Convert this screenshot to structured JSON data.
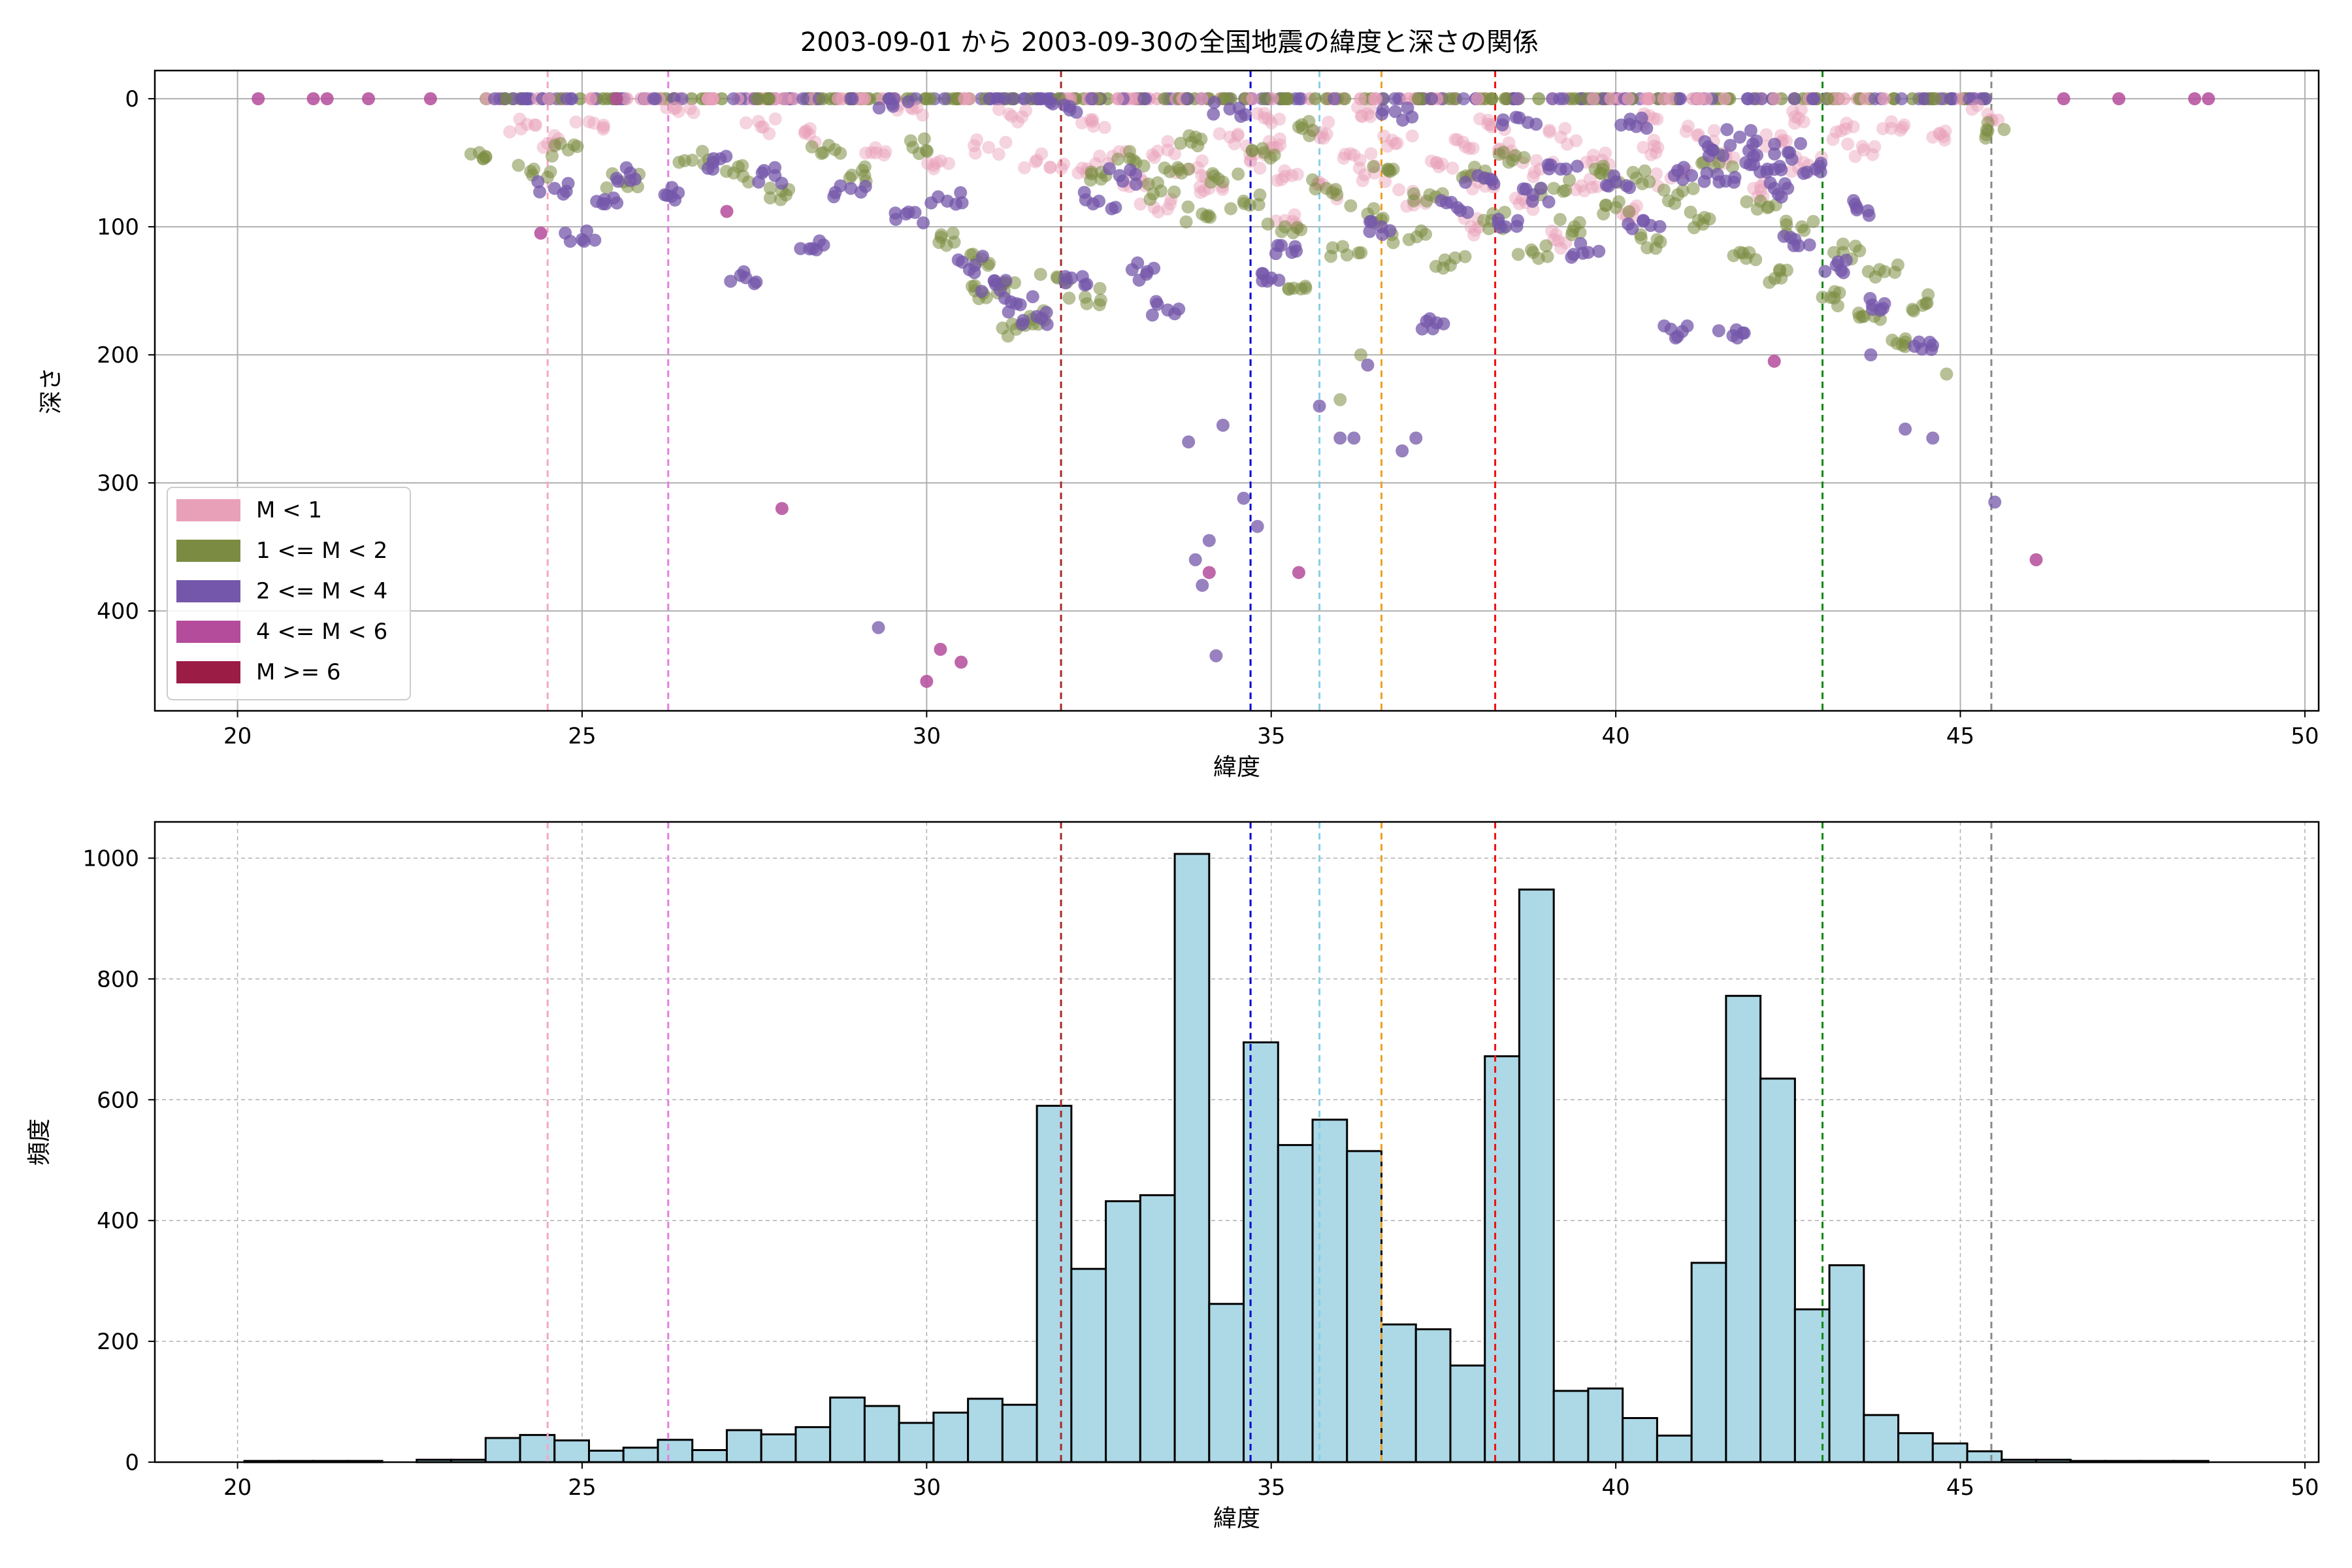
{
  "title": "2003-09-01 から 2003-09-30の全国地震の緯度と深さの関係",
  "chart_data": [
    {
      "type": "scatter",
      "xlabel": "緯度",
      "ylabel": "深さ",
      "xlim": [
        18.8,
        50.2
      ],
      "ylim": [
        478,
        -22
      ],
      "y_inverted": true,
      "x_ticks": [
        20,
        25,
        30,
        35,
        40,
        45,
        50
      ],
      "y_ticks": [
        0,
        100,
        200,
        300,
        400
      ],
      "grid": true,
      "legend_placement": "lower-left",
      "series": [
        {
          "name": "M < 1",
          "color": "#e8a0b8",
          "points": [
            [
              24.2,
              20
            ],
            [
              24.5,
              35
            ],
            [
              25.1,
              18
            ],
            [
              26.4,
              10
            ],
            [
              27.6,
              22
            ],
            [
              28.3,
              28
            ],
            [
              29.2,
              42
            ],
            [
              30.1,
              52
            ],
            [
              30.9,
              38
            ],
            [
              31.6,
              48
            ],
            [
              32.2,
              58
            ],
            [
              32.7,
              45
            ],
            [
              33.1,
              62
            ],
            [
              33.5,
              40
            ],
            [
              33.8,
              55
            ],
            [
              34.1,
              70
            ],
            [
              34.4,
              30
            ],
            [
              34.7,
              48
            ],
            [
              35.0,
              38
            ],
            [
              35.3,
              60
            ],
            [
              35.6,
              25
            ],
            [
              35.9,
              72
            ],
            [
              36.2,
              44
            ],
            [
              36.5,
              58
            ],
            [
              36.8,
              35
            ],
            [
              37.1,
              78
            ],
            [
              37.4,
              50
            ],
            [
              37.7,
              32
            ],
            [
              38.0,
              65
            ],
            [
              38.3,
              40
            ],
            [
              38.6,
              82
            ],
            [
              38.9,
              55
            ],
            [
              39.2,
              30
            ],
            [
              39.5,
              68
            ],
            [
              39.8,
              48
            ],
            [
              40.1,
              90
            ],
            [
              40.4,
              38
            ],
            [
              40.8,
              62
            ],
            [
              41.2,
              28
            ],
            [
              41.6,
              46
            ],
            [
              42.0,
              70
            ],
            [
              42.4,
              34
            ],
            [
              42.8,
              52
            ],
            [
              43.2,
              26
            ],
            [
              43.6,
              40
            ],
            [
              44.0,
              18
            ],
            [
              44.6,
              30
            ],
            [
              45.4,
              12
            ],
            [
              32.4,
              18
            ],
            [
              34.9,
              15
            ],
            [
              36.4,
              12
            ],
            [
              38.2,
              22
            ],
            [
              40.6,
              16
            ],
            [
              42.6,
              14
            ],
            [
              33.3,
              85
            ],
            [
              35.2,
              95
            ],
            [
              37.9,
              100
            ],
            [
              39.1,
              110
            ],
            [
              31.2,
              12
            ],
            [
              29.8,
              8
            ]
          ]
        },
        {
          "name": "1 <= M < 2",
          "color": "#7b8c42",
          "points": [
            [
              23.6,
              45
            ],
            [
              24.3,
              55
            ],
            [
              24.8,
              40
            ],
            [
              25.6,
              65
            ],
            [
              26.6,
              48
            ],
            [
              27.2,
              58
            ],
            [
              27.9,
              72
            ],
            [
              28.5,
              42
            ],
            [
              29.1,
              60
            ],
            [
              29.8,
              38
            ],
            [
              30.4,
              112
            ],
            [
              30.8,
              125
            ],
            [
              31.1,
              145
            ],
            [
              31.5,
              170
            ],
            [
              31.9,
              140
            ],
            [
              32.3,
              155
            ],
            [
              32.6,
              60
            ],
            [
              33.0,
              48
            ],
            [
              33.4,
              72
            ],
            [
              33.7,
              58
            ],
            [
              34.0,
              90
            ],
            [
              34.3,
              65
            ],
            [
              34.6,
              80
            ],
            [
              34.9,
              42
            ],
            [
              35.2,
              100
            ],
            [
              35.5,
              148
            ],
            [
              35.8,
              70
            ],
            [
              36.1,
              122
            ],
            [
              36.4,
              90
            ],
            [
              36.7,
              55
            ],
            [
              37.0,
              110
            ],
            [
              37.3,
              75
            ],
            [
              37.6,
              130
            ],
            [
              37.9,
              60
            ],
            [
              38.2,
              95
            ],
            [
              38.5,
              48
            ],
            [
              38.8,
              120
            ],
            [
              39.1,
              70
            ],
            [
              39.4,
              100
            ],
            [
              39.7,
              55
            ],
            [
              40.0,
              85
            ],
            [
              40.3,
              62
            ],
            [
              40.6,
              110
            ],
            [
              40.9,
              75
            ],
            [
              41.2,
              95
            ],
            [
              41.5,
              50
            ],
            [
              41.8,
              120
            ],
            [
              42.1,
              80
            ],
            [
              42.4,
              140
            ],
            [
              42.7,
              100
            ],
            [
              43.0,
              155
            ],
            [
              43.3,
              120
            ],
            [
              43.6,
              170
            ],
            [
              43.9,
              135
            ],
            [
              44.2,
              190
            ],
            [
              44.5,
              160
            ],
            [
              44.8,
              215
            ],
            [
              45.4,
              25
            ],
            [
              36.0,
              235
            ],
            [
              36.3,
              200
            ],
            [
              31.3,
              180
            ],
            [
              30.7,
              150
            ],
            [
              33.9,
              30
            ],
            [
              35.4,
              22
            ]
          ]
        },
        {
          "name": "2 <= M < 4",
          "color": "#7457aa",
          "points": [
            [
              24.6,
              70
            ],
            [
              25.0,
              110
            ],
            [
              25.3,
              82
            ],
            [
              25.7,
              58
            ],
            [
              26.2,
              75
            ],
            [
              26.9,
              50
            ],
            [
              27.3,
              138
            ],
            [
              27.8,
              60
            ],
            [
              28.4,
              118
            ],
            [
              28.9,
              70
            ],
            [
              29.3,
              413
            ],
            [
              29.7,
              90
            ],
            [
              30.3,
              80
            ],
            [
              30.7,
              130
            ],
            [
              31.0,
              145
            ],
            [
              31.3,
              160
            ],
            [
              31.6,
              170
            ],
            [
              32.1,
              140
            ],
            [
              32.5,
              80
            ],
            [
              32.8,
              60
            ],
            [
              33.2,
              135
            ],
            [
              33.5,
              165
            ],
            [
              33.8,
              268
            ],
            [
              33.9,
              360
            ],
            [
              34.0,
              380
            ],
            [
              34.1,
              345
            ],
            [
              34.2,
              435
            ],
            [
              34.3,
              255
            ],
            [
              34.6,
              312
            ],
            [
              34.8,
              334
            ],
            [
              35.0,
              140
            ],
            [
              35.3,
              120
            ],
            [
              35.7,
              240
            ],
            [
              36.0,
              265
            ],
            [
              36.2,
              265
            ],
            [
              36.4,
              208
            ],
            [
              36.6,
              100
            ],
            [
              36.9,
              275
            ],
            [
              37.1,
              265
            ],
            [
              37.4,
              175
            ],
            [
              37.7,
              85
            ],
            [
              38.0,
              60
            ],
            [
              38.4,
              100
            ],
            [
              38.8,
              75
            ],
            [
              39.2,
              55
            ],
            [
              39.6,
              120
            ],
            [
              40.0,
              65
            ],
            [
              40.4,
              95
            ],
            [
              40.8,
              180
            ],
            [
              41.1,
              60
            ],
            [
              41.4,
              40
            ],
            [
              41.7,
              185
            ],
            [
              42.0,
              45
            ],
            [
              42.3,
              70
            ],
            [
              42.6,
              110
            ],
            [
              42.9,
              55
            ],
            [
              43.2,
              130
            ],
            [
              43.5,
              85
            ],
            [
              43.7,
              200
            ],
            [
              43.9,
              160
            ],
            [
              44.2,
              258
            ],
            [
              44.4,
              190
            ],
            [
              44.6,
              265
            ],
            [
              45.5,
              315
            ],
            [
              41.8,
              30
            ],
            [
              42.2,
              55
            ],
            [
              41.5,
              65
            ],
            [
              42.5,
              42
            ],
            [
              40.2,
              20
            ],
            [
              38.6,
              15
            ],
            [
              36.8,
              10
            ],
            [
              34.4,
              8
            ],
            [
              32.0,
              5
            ],
            [
              29.5,
              4
            ]
          ]
        },
        {
          "name": "4 <= M < 6",
          "color": "#b44c9b",
          "points": [
            [
              20.3,
              0
            ],
            [
              21.1,
              0
            ],
            [
              21.3,
              0
            ],
            [
              21.9,
              0
            ],
            [
              22.8,
              0
            ],
            [
              24.4,
              105
            ],
            [
              27.9,
              320
            ],
            [
              30.0,
              455
            ],
            [
              30.2,
              430
            ],
            [
              30.5,
              440
            ],
            [
              34.1,
              370
            ],
            [
              35.4,
              370
            ],
            [
              42.3,
              205
            ],
            [
              46.1,
              360
            ],
            [
              46.5,
              0
            ],
            [
              47.3,
              0
            ],
            [
              48.4,
              0
            ],
            [
              48.6,
              0
            ],
            [
              27.1,
              88
            ],
            [
              25.5,
              0
            ]
          ]
        },
        {
          "name": "M >= 6",
          "color": "#9b1c44",
          "points": []
        }
      ],
      "vertical_lines": [
        {
          "x": 24.5,
          "color": "#f4a8c8"
        },
        {
          "x": 26.25,
          "color": "#e57ee0"
        },
        {
          "x": 31.95,
          "color": "#a52a2a"
        },
        {
          "x": 34.7,
          "color": "#0000cc"
        },
        {
          "x": 35.7,
          "color": "#87ceeb"
        },
        {
          "x": 36.6,
          "color": "#f0a020"
        },
        {
          "x": 38.25,
          "color": "#ee1111"
        },
        {
          "x": 43.0,
          "color": "#118811"
        },
        {
          "x": 45.45,
          "color": "#888888"
        }
      ]
    },
    {
      "type": "bar",
      "xlabel": "緯度",
      "ylabel": "頻度",
      "xlim": [
        18.8,
        50.2
      ],
      "ylim": [
        0,
        1060
      ],
      "x_ticks": [
        20,
        25,
        30,
        35,
        40,
        45,
        50
      ],
      "y_ticks": [
        0,
        200,
        400,
        600,
        800,
        1000
      ],
      "grid": true,
      "bar_color": "#add8e6",
      "bin_width": 0.5,
      "bin_starts": [
        20.1,
        20.6,
        21.1,
        21.6,
        22.1,
        22.6,
        23.1,
        23.6,
        24.1,
        24.6,
        25.1,
        25.6,
        26.1,
        26.6,
        27.1,
        27.6,
        28.1,
        28.6,
        29.1,
        29.6,
        30.1,
        30.6,
        31.1,
        31.6,
        32.1,
        32.6,
        33.1,
        33.6,
        34.1,
        34.6,
        35.1,
        35.6,
        36.1,
        36.6,
        37.1,
        37.6,
        38.1,
        38.6,
        39.1,
        39.6,
        40.1,
        40.6,
        41.1,
        41.6,
        42.1,
        42.6,
        43.1,
        43.6,
        44.1,
        44.6,
        45.1,
        45.6,
        46.1,
        46.6,
        47.1,
        47.6,
        48.1,
        48.6
      ],
      "values": [
        2,
        2,
        2,
        2,
        0,
        4,
        4,
        40,
        45,
        36,
        19,
        24,
        37,
        20,
        53,
        46,
        58,
        107,
        93,
        65,
        82,
        105,
        95,
        590,
        320,
        432,
        442,
        1007,
        262,
        695,
        525,
        567,
        515,
        228,
        220,
        160,
        672,
        948,
        118,
        122,
        73,
        44,
        330,
        772,
        635,
        253,
        326,
        78,
        48,
        31,
        18,
        4,
        4,
        2,
        2,
        2,
        2,
        0
      ],
      "vertical_lines": [
        {
          "x": 24.5,
          "color": "#f4a8c8"
        },
        {
          "x": 26.25,
          "color": "#e57ee0"
        },
        {
          "x": 31.95,
          "color": "#a52a2a"
        },
        {
          "x": 34.7,
          "color": "#0000cc"
        },
        {
          "x": 35.7,
          "color": "#87ceeb"
        },
        {
          "x": 36.6,
          "color": "#f0a020"
        },
        {
          "x": 38.25,
          "color": "#ee1111"
        },
        {
          "x": 43.0,
          "color": "#118811"
        },
        {
          "x": 45.45,
          "color": "#888888"
        }
      ]
    }
  ]
}
